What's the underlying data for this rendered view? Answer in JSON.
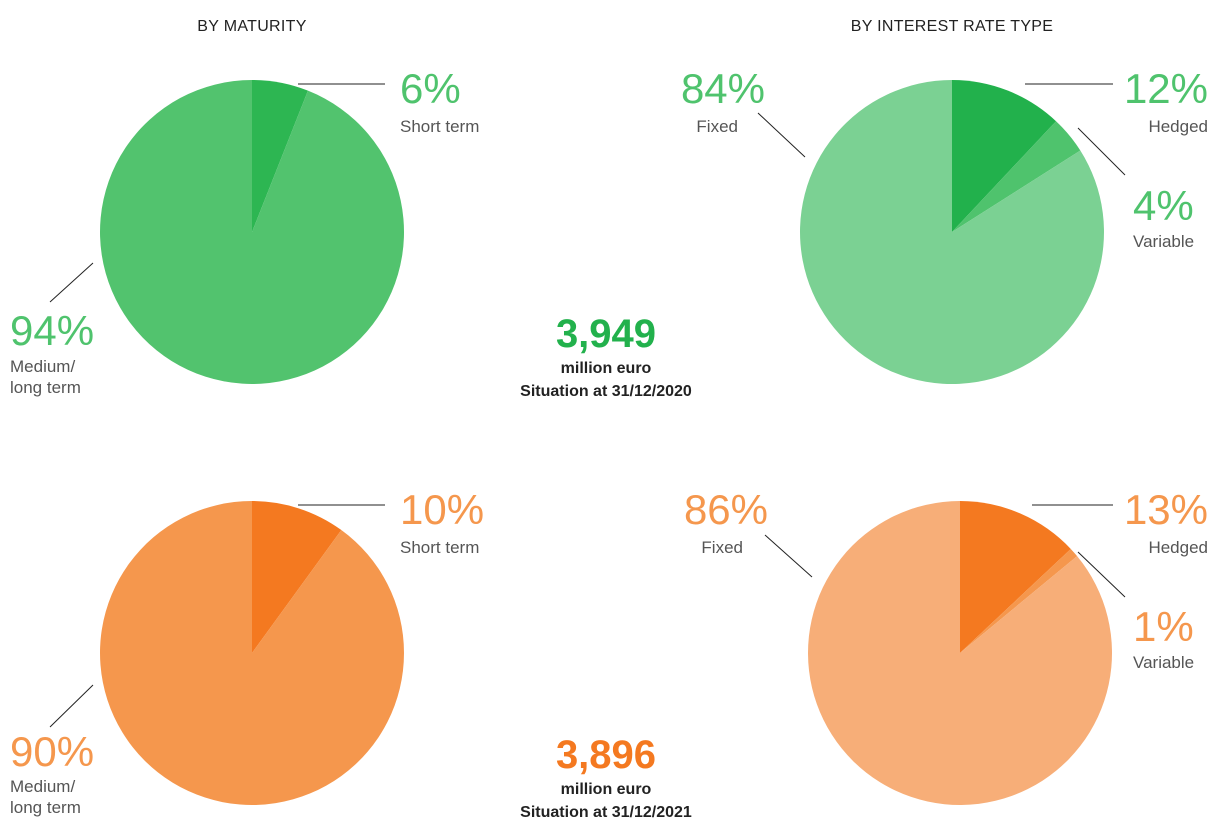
{
  "headers": [
    "BY MATURITY",
    "BY INTEREST RATE TYPE"
  ],
  "chart_data": [
    {
      "type": "pie",
      "categories": [
        "Short term",
        "Medium/ long term"
      ],
      "values": [
        6,
        94
      ],
      "value_labels": [
        "6%",
        "94%"
      ],
      "colors": [
        "#2db652",
        "#52c36e"
      ],
      "label_color": "#4fc36d"
    },
    {
      "type": "pie",
      "categories": [
        "Hedged",
        "Variable",
        "Fixed"
      ],
      "values": [
        12,
        4,
        84
      ],
      "value_labels": [
        "12%",
        "4%",
        "84%"
      ],
      "colors": [
        "#22b14c",
        "#4fc36d",
        "#7bd193"
      ],
      "label_color": "#4fc36d"
    },
    {
      "type": "pie",
      "categories": [
        "Short term",
        "Medium/ long term"
      ],
      "values": [
        10,
        90
      ],
      "value_labels": [
        "10%",
        "90%"
      ],
      "colors": [
        "#f47920",
        "#f5974d"
      ],
      "label_color": "#f5974d"
    },
    {
      "type": "pie",
      "categories": [
        "Hedged",
        "Variable",
        "Fixed"
      ],
      "values": [
        13,
        1,
        86
      ],
      "value_labels": [
        "13%",
        "1%",
        "86%"
      ],
      "colors": [
        "#f47920",
        "#f5974d",
        "#f7ae78"
      ],
      "label_color": "#f5974d"
    }
  ],
  "totals": [
    {
      "amount": "3,949",
      "unit": "million euro",
      "date": "Situation at 31/12/2020",
      "color": "#22b14c"
    },
    {
      "amount": "3,896",
      "unit": "million euro",
      "date": "Situation at 31/12/2021",
      "color": "#f47920"
    }
  ]
}
